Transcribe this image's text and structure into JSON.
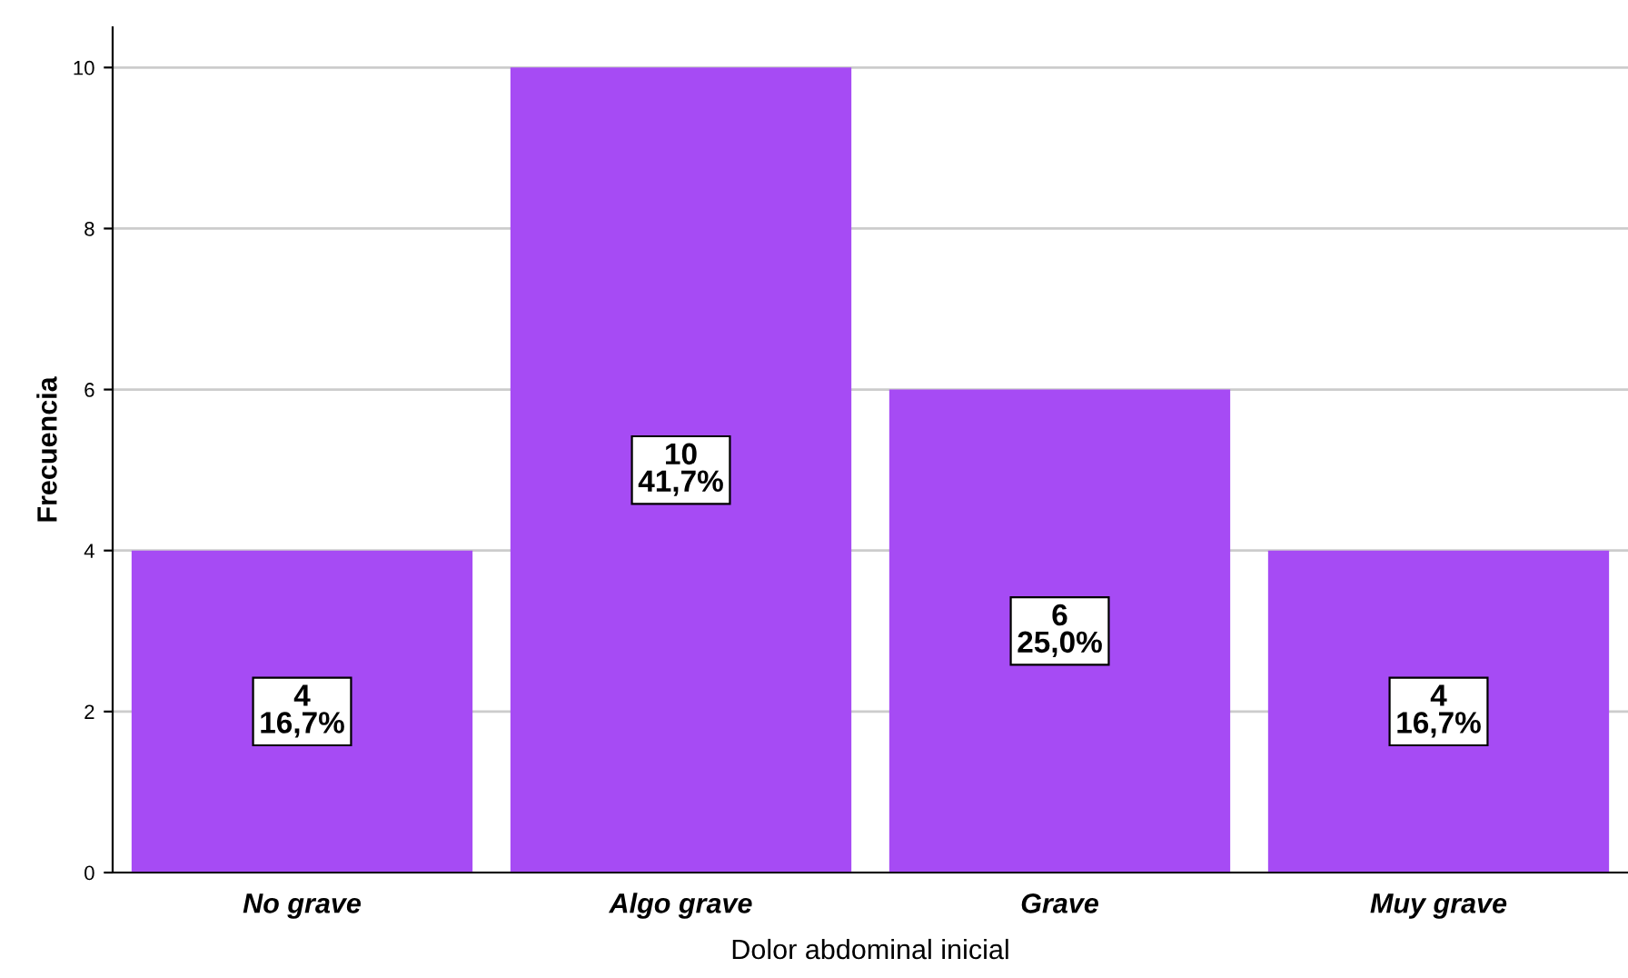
{
  "chart_data": {
    "type": "bar",
    "xlabel": "Dolor abdominal inicial",
    "ylabel": "Frecuencia",
    "categories": [
      "No grave",
      "Algo grave",
      "Grave",
      "Muy grave"
    ],
    "values": [
      4,
      10,
      6,
      4
    ],
    "value_labels": [
      "4\n16,7%",
      "10\n41,7%",
      "6\n25,0%",
      "4\n16,7%"
    ],
    "color": "#a64bf4",
    "ylim": [
      0,
      10.5
    ],
    "yticks": [
      0,
      2,
      4,
      6,
      8,
      10
    ],
    "grid": "y"
  }
}
